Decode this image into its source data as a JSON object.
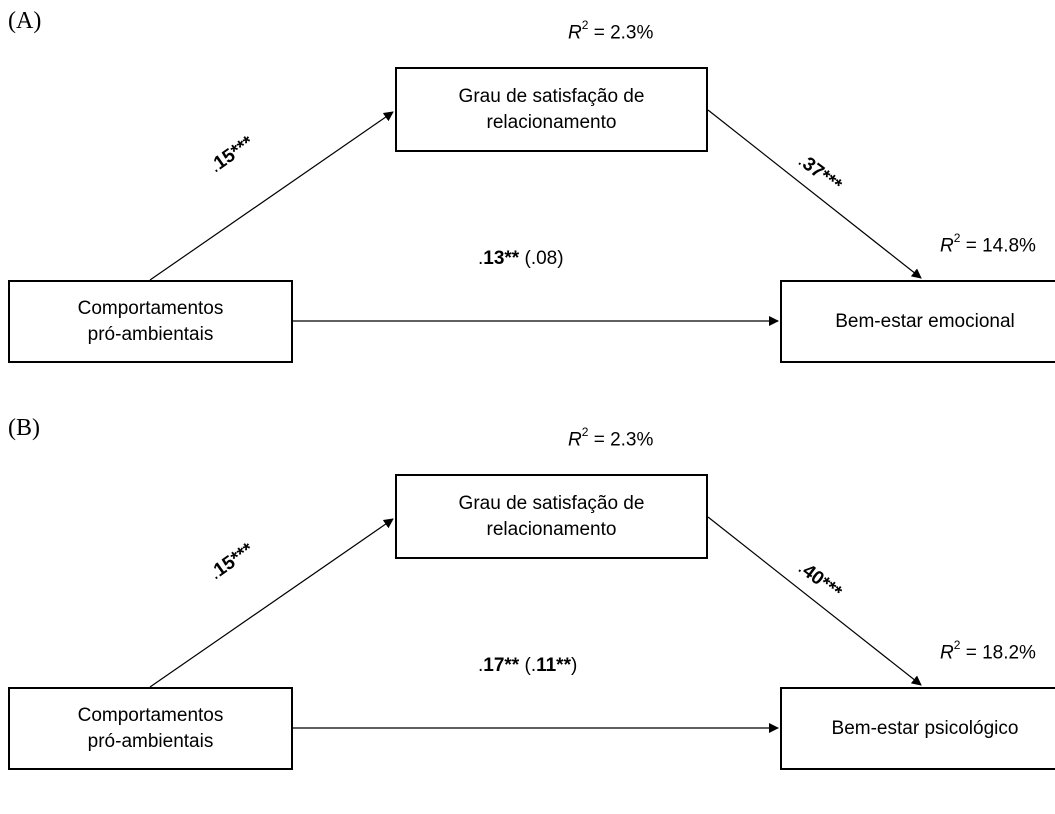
{
  "panels": [
    {
      "label": "(A)",
      "mediator": {
        "line1": "Grau de satisfação de",
        "line2": "relacionamento",
        "r2_label": "R",
        "r2_sup": "2",
        "r2_value": " = 2.3%"
      },
      "predictor": {
        "line1": "Comportamentos",
        "line2": "pró-ambientais"
      },
      "outcome": {
        "label": "Bem-estar emocional",
        "r2_label": "R",
        "r2_sup": "2",
        "r2_value": " = 14.8%"
      },
      "path_a": {
        "dot": ".",
        "bold": "15***"
      },
      "path_b": {
        "dot": ".",
        "bold": "37***"
      },
      "path_c": {
        "dot": ".",
        "bold": "13**",
        "paren_open": " (",
        "paren_dot": ".",
        "paren_bold": "",
        "paren_plain": "08",
        "paren_close": ")"
      }
    },
    {
      "label": "(B)",
      "mediator": {
        "line1": "Grau de satisfação de",
        "line2": "relacionamento",
        "r2_label": "R",
        "r2_sup": "2",
        "r2_value": " = 2.3%"
      },
      "predictor": {
        "line1": "Comportamentos",
        "line2": "pró-ambientais"
      },
      "outcome": {
        "label": "Bem-estar psicológico",
        "r2_label": "R",
        "r2_sup": "2",
        "r2_value": " = 18.2%"
      },
      "path_a": {
        "dot": ".",
        "bold": "15***"
      },
      "path_b": {
        "dot": ".",
        "bold": "40***"
      },
      "path_c": {
        "dot": ".",
        "bold": "17**",
        "paren_open": " (",
        "paren_dot": ".",
        "paren_bold": "11**",
        "paren_plain": "",
        "paren_close": ")"
      }
    }
  ]
}
